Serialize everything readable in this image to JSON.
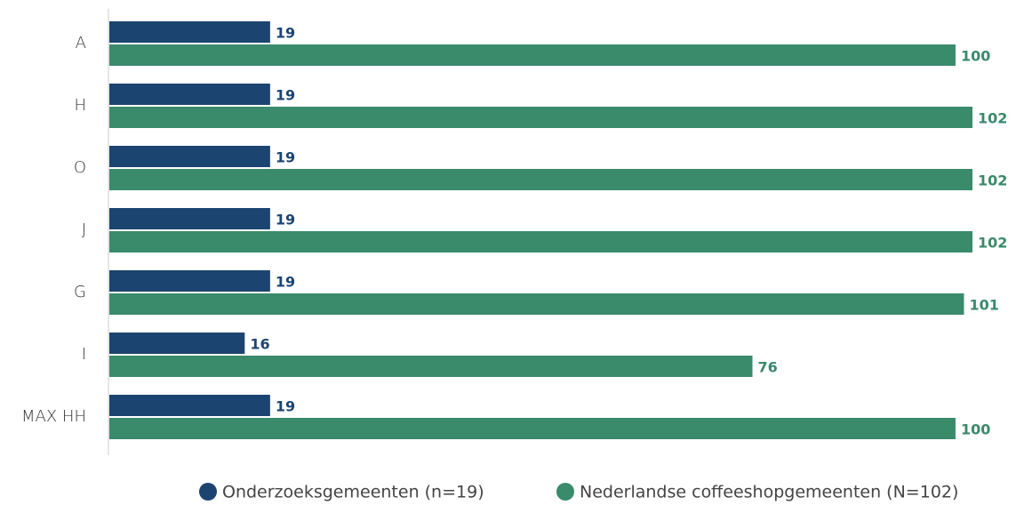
{
  "chart_data": {
    "type": "bar",
    "orientation": "horizontal",
    "categories": [
      "A",
      "H",
      "O",
      "J",
      "G",
      "I",
      "MAX HH"
    ],
    "series": [
      {
        "name": "Onderzoeksgemeenten (n=19)",
        "color": "#1c4470",
        "values": [
          19,
          19,
          19,
          19,
          19,
          16,
          19
        ]
      },
      {
        "name": "Nederlandse coffeeshopgemeenten (N=102)",
        "color": "#3a8a6c",
        "values": [
          100,
          102,
          102,
          102,
          101,
          76,
          100
        ]
      }
    ],
    "legend": "bottom"
  }
}
